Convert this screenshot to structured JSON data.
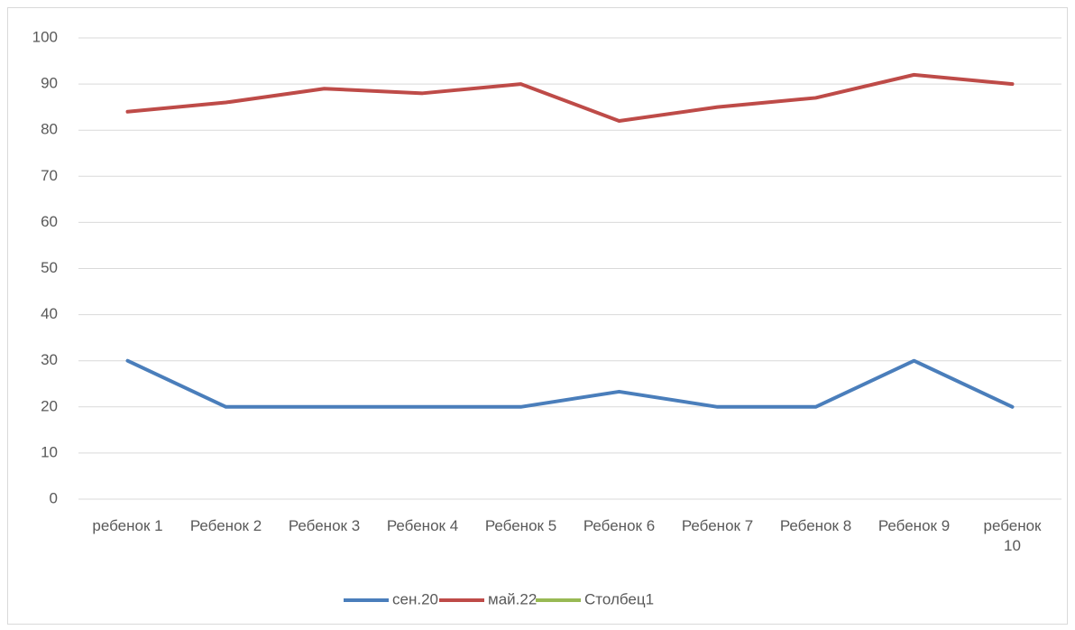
{
  "chart_data": {
    "type": "line",
    "categories": [
      "ребенок 1",
      "Ребенок 2",
      "Ребенок 3",
      "Ребенок 4",
      "Ребенок 5",
      "Ребенок 6",
      "Ребенок 7",
      "Ребенок 8",
      "Ребенок 9",
      "ребенок 10"
    ],
    "series": [
      {
        "name": "сен.20",
        "color": "#4a7ebb",
        "values": [
          30,
          20,
          20,
          20,
          20,
          23.3,
          20,
          20,
          30,
          20
        ]
      },
      {
        "name": "май.22",
        "color": "#be4b48",
        "values": [
          84,
          86,
          89,
          88,
          90,
          82,
          85,
          87,
          92,
          90
        ]
      },
      {
        "name": "Столбец1",
        "color": "#98b954",
        "values": [
          null,
          null,
          null,
          null,
          null,
          null,
          null,
          null,
          null,
          null
        ]
      }
    ],
    "ylim": [
      0,
      100
    ],
    "yticks": [
      0,
      10,
      20,
      30,
      40,
      50,
      60,
      70,
      80,
      90,
      100
    ],
    "grid": true,
    "legend": "bottom"
  }
}
